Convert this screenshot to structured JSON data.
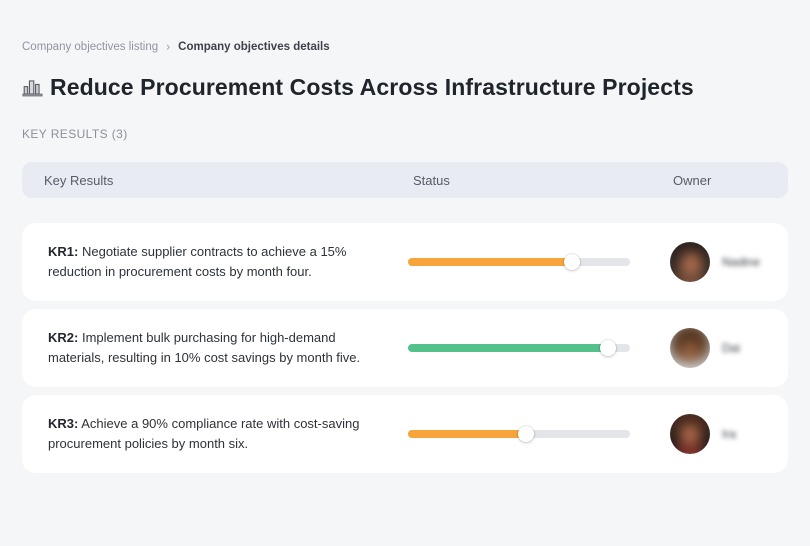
{
  "breadcrumb": {
    "items": [
      {
        "label": "Company objectives listing"
      },
      {
        "label": "Company objectives details"
      }
    ],
    "separator": "›"
  },
  "header": {
    "icon": "city-buildings-icon",
    "title": "Reduce Procurement Costs Across Infrastructure Projects"
  },
  "section": {
    "label": "KEY RESULTS (3)"
  },
  "table": {
    "columns": {
      "key_results": "Key Results",
      "status": "Status",
      "owner": "Owner"
    },
    "rows": [
      {
        "kr_label": "KR1:",
        "description": "Negotiate supplier contracts to achieve a 15% reduction in procurement costs by month four.",
        "progress_percent": 74,
        "progress_color": "#f7a43c",
        "owner_name": "Nadine"
      },
      {
        "kr_label": "KR2:",
        "description": "Implement bulk purchasing for high-demand materials, resulting in 10% cost savings by month five.",
        "progress_percent": 90,
        "progress_color": "#54c08a",
        "owner_name": "Dai"
      },
      {
        "kr_label": "KR3:",
        "description": "Achieve a 90% compliance rate with cost-saving procurement policies by month six.",
        "progress_percent": 53,
        "progress_color": "#f7a43c",
        "owner_name": "Ira"
      }
    ]
  },
  "colors": {
    "page_background": "#f5f6f8",
    "table_header_background": "#e9ebf2",
    "card_background": "#ffffff",
    "progress_track": "#e4e5e8",
    "progress_orange": "#f7a43c",
    "progress_green": "#54c08a"
  }
}
